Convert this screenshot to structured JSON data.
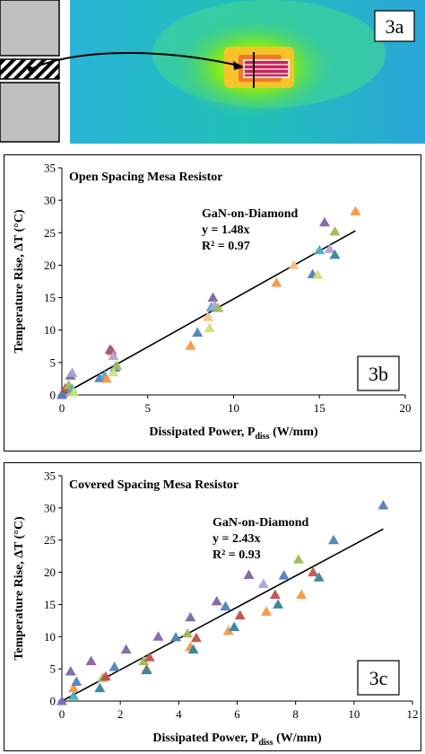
{
  "panel_a": {
    "label": "3a"
  },
  "chart_data": [
    {
      "type": "scatter",
      "panel_label": "3b",
      "title": "Open Spacing Mesa Resistor",
      "xlabel": "Dissipated Power, P",
      "xlabel_sub": "diss",
      "xlabel_unit": "(W/mm)",
      "ylabel": "Temperature Rise, ΔT (°C)",
      "xlim": [
        0,
        20
      ],
      "ylim": [
        0,
        35
      ],
      "xticks": [
        0,
        5,
        10,
        15,
        20
      ],
      "yticks": [
        0,
        5,
        10,
        15,
        20,
        25,
        30,
        35
      ],
      "grid": false,
      "annotation": [
        "GaN-on-Diamond",
        "y = 1.48x",
        "R² = 0.97"
      ],
      "fit_slope": 1.48,
      "points": [
        {
          "x": 0.0,
          "y": 0.0,
          "color": "#7b68c0"
        },
        {
          "x": 0.05,
          "y": 0.3,
          "color": "#4f81bd"
        },
        {
          "x": 0.2,
          "y": 1.0,
          "color": "#c0504d"
        },
        {
          "x": 0.4,
          "y": 1.5,
          "color": "#9bbb59"
        },
        {
          "x": 0.5,
          "y": 3.0,
          "color": "#8064a2"
        },
        {
          "x": 0.6,
          "y": 3.4,
          "color": "#a3a0d6"
        },
        {
          "x": 0.5,
          "y": 0.5,
          "color": "#f79646"
        },
        {
          "x": 0.6,
          "y": 0.9,
          "color": "#4bacc6"
        },
        {
          "x": 0.7,
          "y": 0.4,
          "color": "#cfe07a"
        },
        {
          "x": 2.2,
          "y": 2.6,
          "color": "#4f81bd"
        },
        {
          "x": 2.5,
          "y": 3.0,
          "color": "#4bacc6"
        },
        {
          "x": 2.6,
          "y": 2.5,
          "color": "#f79646"
        },
        {
          "x": 2.8,
          "y": 7.0,
          "color": "#8064a2"
        },
        {
          "x": 2.9,
          "y": 6.8,
          "color": "#c0504d"
        },
        {
          "x": 3.0,
          "y": 6.0,
          "color": "#b3a2d6"
        },
        {
          "x": 3.1,
          "y": 4.2,
          "color": "#4f81bd"
        },
        {
          "x": 3.2,
          "y": 4.5,
          "color": "#9bbb59"
        },
        {
          "x": 3.0,
          "y": 3.5,
          "color": "#cfe07a"
        },
        {
          "x": 7.5,
          "y": 7.6,
          "color": "#f79646"
        },
        {
          "x": 7.9,
          "y": 9.6,
          "color": "#4f81bd"
        },
        {
          "x": 8.5,
          "y": 12.0,
          "color": "#fac090"
        },
        {
          "x": 8.6,
          "y": 10.3,
          "color": "#cfe07a"
        },
        {
          "x": 8.7,
          "y": 13.5,
          "color": "#4bacc6"
        },
        {
          "x": 8.8,
          "y": 15.0,
          "color": "#8064a2"
        },
        {
          "x": 8.9,
          "y": 13.8,
          "color": "#b3a2d6"
        },
        {
          "x": 9.1,
          "y": 13.4,
          "color": "#9bbb59"
        },
        {
          "x": 12.5,
          "y": 17.3,
          "color": "#f79646"
        },
        {
          "x": 13.5,
          "y": 20.0,
          "color": "#fac090"
        },
        {
          "x": 14.6,
          "y": 18.6,
          "color": "#4f81bd"
        },
        {
          "x": 14.9,
          "y": 18.5,
          "color": "#cfe07a"
        },
        {
          "x": 15.0,
          "y": 22.3,
          "color": "#4bacc6"
        },
        {
          "x": 15.3,
          "y": 26.6,
          "color": "#8064a2"
        },
        {
          "x": 15.6,
          "y": 22.5,
          "color": "#b3a2d6"
        },
        {
          "x": 15.9,
          "y": 25.2,
          "color": "#9bbb59"
        },
        {
          "x": 15.9,
          "y": 21.6,
          "color": "#31859c"
        },
        {
          "x": 17.1,
          "y": 28.3,
          "color": "#f79646"
        }
      ]
    },
    {
      "type": "scatter",
      "panel_label": "3c",
      "title": "Covered Spacing Mesa Resistor",
      "xlabel": "Dissipated Power, P",
      "xlabel_sub": "diss",
      "xlabel_unit": "(W/mm)",
      "ylabel": "Temperature Rise, ΔT (°C)",
      "xlim": [
        0,
        12
      ],
      "ylim": [
        0,
        35
      ],
      "xticks": [
        0,
        2,
        4,
        6,
        8,
        10,
        12
      ],
      "yticks": [
        0,
        5,
        10,
        15,
        20,
        25,
        30,
        35
      ],
      "grid": false,
      "annotation": [
        "GaN-on-Diamond",
        "y = 2.43x",
        "R² = 0.93"
      ],
      "fit_slope": 2.43,
      "points": [
        {
          "x": 0.0,
          "y": 0.0,
          "color": "#7b68c0"
        },
        {
          "x": 0.3,
          "y": 4.6,
          "color": "#8064a2"
        },
        {
          "x": 0.4,
          "y": 0.8,
          "color": "#4bacc6"
        },
        {
          "x": 0.4,
          "y": 2.0,
          "color": "#f79646"
        },
        {
          "x": 0.5,
          "y": 3.0,
          "color": "#4f81bd"
        },
        {
          "x": 1.0,
          "y": 6.2,
          "color": "#8064a2"
        },
        {
          "x": 1.3,
          "y": 2.0,
          "color": "#31859c"
        },
        {
          "x": 1.4,
          "y": 3.6,
          "color": "#9bbb59"
        },
        {
          "x": 1.5,
          "y": 3.8,
          "color": "#c0504d"
        },
        {
          "x": 1.8,
          "y": 5.3,
          "color": "#4f81bd"
        },
        {
          "x": 2.2,
          "y": 8.0,
          "color": "#8064a2"
        },
        {
          "x": 2.8,
          "y": 6.2,
          "color": "#9bbb59"
        },
        {
          "x": 2.9,
          "y": 5.0,
          "color": "#f79646"
        },
        {
          "x": 2.9,
          "y": 4.8,
          "color": "#31859c"
        },
        {
          "x": 3.0,
          "y": 6.8,
          "color": "#c0504d"
        },
        {
          "x": 3.3,
          "y": 10.0,
          "color": "#8064a2"
        },
        {
          "x": 3.9,
          "y": 9.9,
          "color": "#4f81bd"
        },
        {
          "x": 4.3,
          "y": 10.5,
          "color": "#9bbb59"
        },
        {
          "x": 4.4,
          "y": 13.0,
          "color": "#8064a2"
        },
        {
          "x": 4.4,
          "y": 8.4,
          "color": "#f79646"
        },
        {
          "x": 4.5,
          "y": 8.0,
          "color": "#31859c"
        },
        {
          "x": 4.6,
          "y": 9.8,
          "color": "#c0504d"
        },
        {
          "x": 5.3,
          "y": 15.5,
          "color": "#8064a2"
        },
        {
          "x": 5.6,
          "y": 14.7,
          "color": "#4f81bd"
        },
        {
          "x": 5.7,
          "y": 10.9,
          "color": "#f79646"
        },
        {
          "x": 5.9,
          "y": 11.5,
          "color": "#31859c"
        },
        {
          "x": 6.1,
          "y": 13.3,
          "color": "#c0504d"
        },
        {
          "x": 6.4,
          "y": 19.6,
          "color": "#8064a2"
        },
        {
          "x": 6.9,
          "y": 18.2,
          "color": "#b3a2d6"
        },
        {
          "x": 7.0,
          "y": 13.9,
          "color": "#f79646"
        },
        {
          "x": 7.3,
          "y": 16.5,
          "color": "#c0504d"
        },
        {
          "x": 7.4,
          "y": 15.0,
          "color": "#31859c"
        },
        {
          "x": 7.6,
          "y": 19.5,
          "color": "#4f81bd"
        },
        {
          "x": 8.1,
          "y": 22.0,
          "color": "#9bbb59"
        },
        {
          "x": 8.2,
          "y": 16.5,
          "color": "#f79646"
        },
        {
          "x": 8.6,
          "y": 20.0,
          "color": "#c0504d"
        },
        {
          "x": 8.8,
          "y": 19.2,
          "color": "#31859c"
        },
        {
          "x": 9.3,
          "y": 25.0,
          "color": "#4f81bd"
        },
        {
          "x": 11.0,
          "y": 30.4,
          "color": "#4f81bd"
        }
      ]
    }
  ]
}
